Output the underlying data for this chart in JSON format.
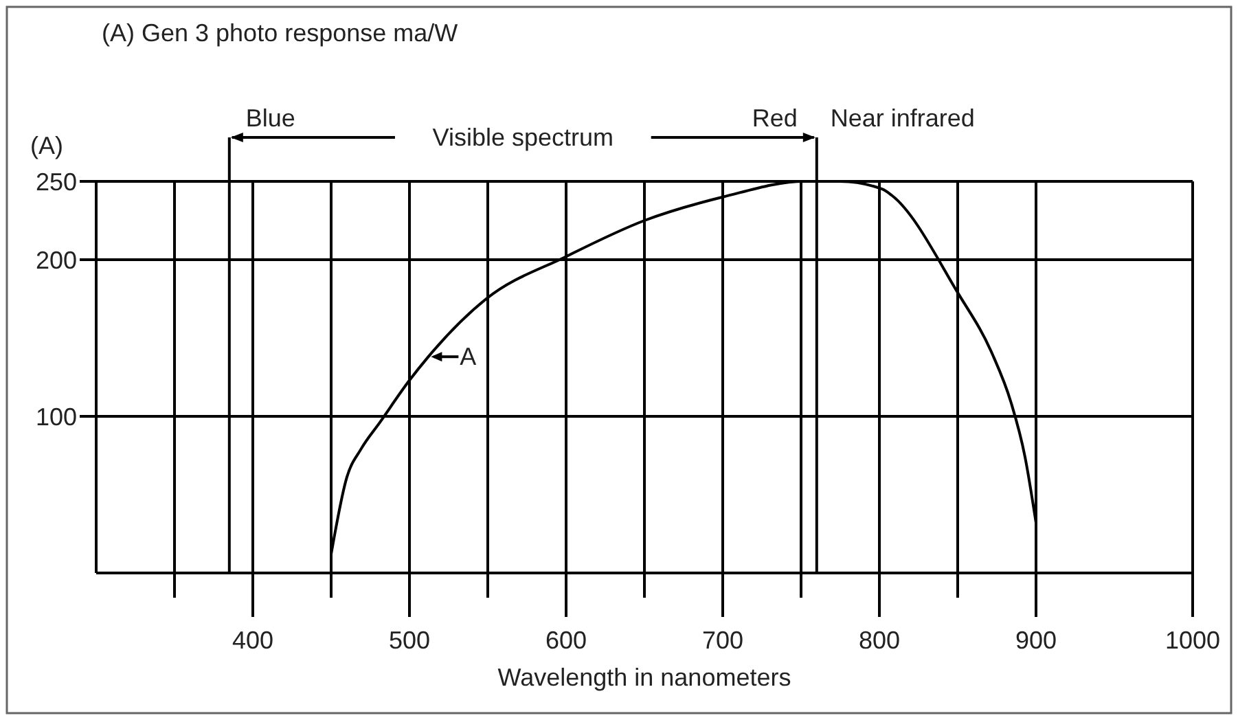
{
  "chart_data": {
    "type": "line",
    "title": "(A) Gen 3 photo response ma/W",
    "ylabel": "(A)",
    "xlabel": "Wavelength in nanometers",
    "x": [
      450,
      460,
      469,
      481,
      500,
      512,
      549,
      600,
      650,
      700,
      752,
      775,
      802,
      808,
      850,
      872,
      884,
      893,
      900
    ],
    "series": [
      {
        "color": "#000000",
        "values": [
          12,
          61,
          79,
          96,
          123,
          138,
          175,
          202,
          225,
          240,
          250,
          250,
          245,
          241,
          179,
          140,
          109,
          74,
          32
        ]
      }
    ],
    "xlim": [
      300,
      1000
    ],
    "xticks": [
      {
        "value": 350,
        "label": null
      },
      400,
      {
        "value": 450,
        "label": null
      },
      500,
      {
        "value": 550,
        "label": null
      },
      600,
      {
        "value": 650,
        "label": null
      },
      700,
      {
        "value": 750,
        "label": null
      },
      800,
      {
        "value": 850,
        "label": null
      },
      900,
      1000
    ],
    "ylim": [
      0,
      250
    ],
    "yticks": [
      100,
      200,
      250
    ],
    "grid": true,
    "marker": "none",
    "line_style": "solid",
    "ref_lines": [
      {
        "axis": "x",
        "value": 385,
        "label": "Blue"
      },
      {
        "axis": "x",
        "value": 760,
        "label": "Red"
      }
    ],
    "annotations": [
      "Visible spectrum",
      "Near infrared",
      {
        "text": "A",
        "x": 512,
        "y": 138
      }
    ]
  }
}
